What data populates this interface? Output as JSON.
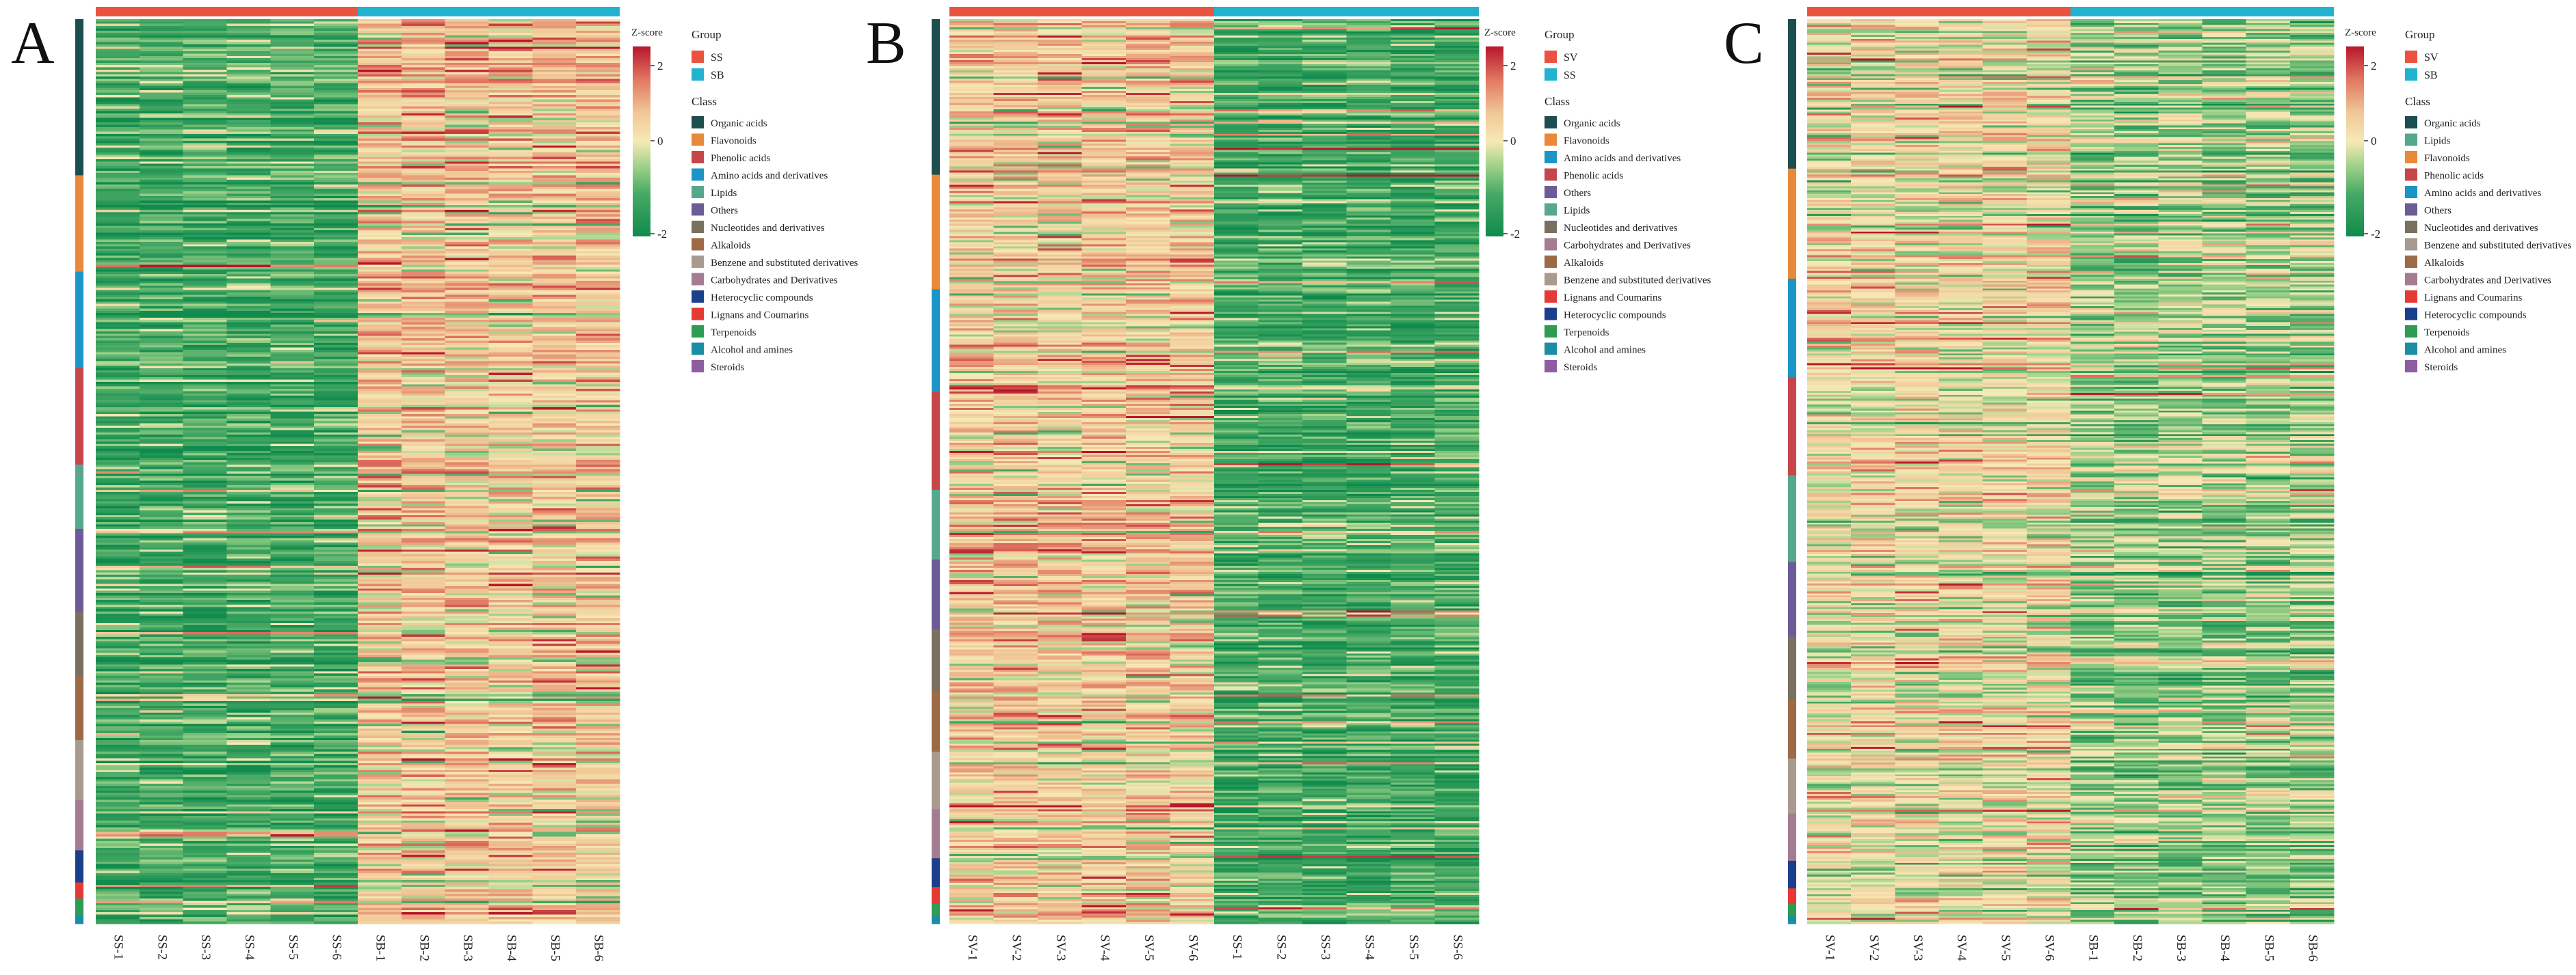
{
  "class_colors": {
    "Organic acids": "#1d4e4f",
    "Flavonoids": "#e9893a",
    "Lipids": "#56a88c",
    "Phenolic acids": "#c6464a",
    "Amino acids and derivatives": "#1b95c6",
    "Others": "#6b5c97",
    "Nucleotides and derivatives": "#7a7060",
    "Alkaloids": "#9c6a47",
    "Benzene and substituted derivatives": "#a89a8f",
    "Carbohydrates and Derivatives": "#a57b92",
    "Heterocyclic compounds": "#1c3f8c",
    "Lignans and Coumarins": "#e53935",
    "Terpenoids": "#2e9c52",
    "Alcohol and amines": "#1c8ea4",
    "Steroids": "#8e5d9f"
  },
  "group_colors": {
    "first": "#e95340",
    "second": "#22b2cf"
  },
  "chart_data": [
    {
      "type": "heatmap",
      "panel_label": "A",
      "zscore_label": "Z-score",
      "zscore_range": [
        -2,
        2
      ],
      "zscore_ticks": [
        "2",
        "0",
        "-2"
      ],
      "legend_group_title": "Group",
      "groups": [
        "SS",
        "SB"
      ],
      "legend_class_title": "Class",
      "classes": [
        "Organic acids",
        "Flavonoids",
        "Phenolic acids",
        "Amino acids and derivatives",
        "Lipids",
        "Others",
        "Nucleotides and derivatives",
        "Alkaloids",
        "Benzene and substituted derivatives",
        "Carbohydrates and Derivatives",
        "Heterocyclic compounds",
        "Lignans and Coumarins",
        "Terpenoids",
        "Alcohol and amines",
        "Steroids"
      ],
      "samples": [
        "SS-1",
        "SS-2",
        "SS-3",
        "SS-4",
        "SS-5",
        "SS-6",
        "SB-1",
        "SB-2",
        "SB-3",
        "SB-4",
        "SB-5",
        "SB-6"
      ],
      "row_class_order": [
        "Organic acids",
        "Flavonoids",
        "Amino acids and derivatives",
        "Phenolic acids",
        "Lipids",
        "Others",
        "Nucleotides and derivatives",
        "Alkaloids",
        "Benzene and substituted derivatives",
        "Carbohydrates and Derivatives",
        "Heterocyclic compounds",
        "Lignans and Coumarins",
        "Terpenoids",
        "Alcohol and amines"
      ],
      "row_class_counts": [
        68,
        42,
        42,
        42,
        28,
        36,
        28,
        28,
        26,
        22,
        14,
        7,
        7,
        4
      ],
      "trend": "first group low (mostly green), second group high",
      "first_group_mean": -1.1,
      "second_group_mean": 0.55
    },
    {
      "type": "heatmap",
      "panel_label": "B",
      "zscore_label": "Z-score",
      "zscore_range": [
        -2,
        2
      ],
      "zscore_ticks": [
        "2",
        "0",
        "-2"
      ],
      "legend_group_title": "Group",
      "groups": [
        "SV",
        "SS"
      ],
      "legend_class_title": "Class",
      "classes": [
        "Organic acids",
        "Flavonoids",
        "Amino acids and derivatives",
        "Phenolic acids",
        "Others",
        "Lipids",
        "Nucleotides and derivatives",
        "Carbohydrates and Derivatives",
        "Alkaloids",
        "Benzene and substituted derivatives",
        "Lignans and Coumarins",
        "Heterocyclic compounds",
        "Terpenoids",
        "Alcohol and amines",
        "Steroids"
      ],
      "samples": [
        "SV-1",
        "SV-2",
        "SV-3",
        "SV-4",
        "SV-5",
        "SV-6",
        "SS-1",
        "SS-2",
        "SS-3",
        "SS-4",
        "SS-5",
        "SS-6"
      ],
      "row_class_order": [
        "Organic acids",
        "Flavonoids",
        "Amino acids and derivatives",
        "Phenolic acids",
        "Lipids",
        "Others",
        "Nucleotides and derivatives",
        "Alkaloids",
        "Benzene and substituted derivatives",
        "Carbohydrates and Derivatives",
        "Heterocyclic compounds",
        "Lignans and Coumarins",
        "Terpenoids",
        "Alcohol and amines"
      ],
      "row_class_counts": [
        76,
        56,
        50,
        48,
        34,
        34,
        30,
        30,
        28,
        24,
        14,
        8,
        6,
        4
      ],
      "trend": "first group high (mostly tan/red), second group low (green)",
      "first_group_mean": 0.55,
      "second_group_mean": -1.1
    },
    {
      "type": "heatmap",
      "panel_label": "C",
      "zscore_label": "Z-score",
      "zscore_range": [
        -2,
        2
      ],
      "zscore_ticks": [
        "2",
        "0",
        "-2"
      ],
      "legend_group_title": "Group",
      "groups": [
        "SV",
        "SB"
      ],
      "legend_class_title": "Class",
      "classes": [
        "Organic acids",
        "Lipids",
        "Flavonoids",
        "Phenolic acids",
        "Amino acids and derivatives",
        "Others",
        "Nucleotides and derivatives",
        "Benzene and substituted derivatives",
        "Alkaloids",
        "Carbohydrates and Derivatives",
        "Lignans and Coumarins",
        "Heterocyclic compounds",
        "Terpenoids",
        "Alcohol and amines",
        "Steroids"
      ],
      "samples": [
        "SV-1",
        "SV-2",
        "SV-3",
        "SV-4",
        "SV-5",
        "SV-6",
        "SB-1",
        "SB-2",
        "SB-3",
        "SB-4",
        "SB-5",
        "SB-6"
      ],
      "row_class_order": [
        "Organic acids",
        "Flavonoids",
        "Amino acids and derivatives",
        "Phenolic acids",
        "Lipids",
        "Others",
        "Nucleotides and derivatives",
        "Alkaloids",
        "Benzene and substituted derivatives",
        "Carbohydrates and Derivatives",
        "Heterocyclic compounds",
        "Lignans and Coumarins",
        "Terpenoids",
        "Alcohol and amines"
      ],
      "row_class_counts": [
        76,
        56,
        50,
        50,
        44,
        38,
        32,
        30,
        28,
        24,
        14,
        8,
        6,
        4
      ],
      "trend": "first group moderately high, second group lower with mixed pattern",
      "first_group_mean": 0.25,
      "second_group_mean": -0.45
    }
  ]
}
